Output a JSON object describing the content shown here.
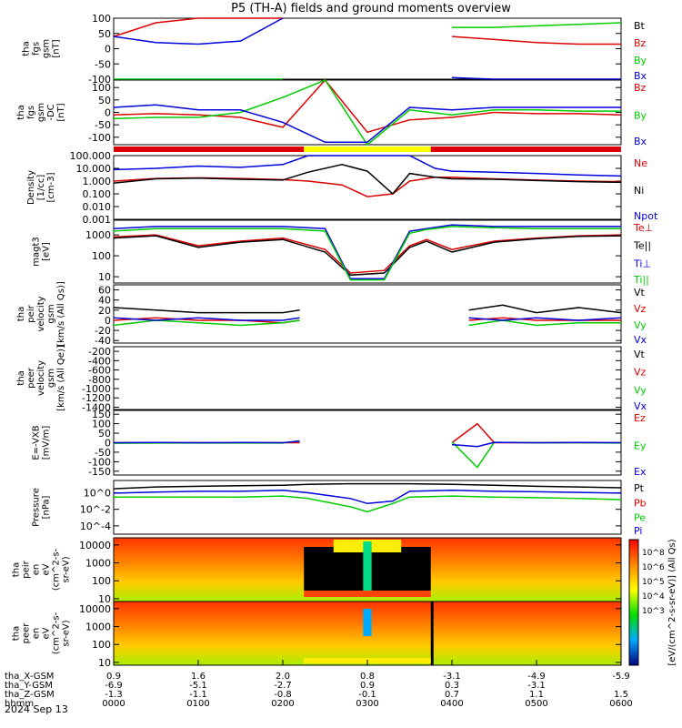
{
  "title": "P5 (TH-A) fields and ground moments overview",
  "colors": {
    "black": "#000000",
    "red": "#dd0000",
    "green": "#00cc00",
    "blue": "#0000dd",
    "yellow": "#ffff00"
  },
  "footer": {
    "rows": [
      {
        "label": "tha_X-GSM",
        "values": [
          "0.9",
          "1.6",
          "2.0",
          "0.8",
          "-3.1",
          "-4.9",
          "-5.9"
        ]
      },
      {
        "label": "tha_Y-GSM",
        "values": [
          "-6.9",
          "-5.1",
          "-2.7",
          "0.9",
          "0.3",
          "-3.1",
          ""
        ]
      },
      {
        "label": "tha_Z-GSM",
        "values": [
          "-1.3",
          "-1.1",
          "-0.8",
          "-0.1",
          "0.7",
          "1.1",
          "1.5"
        ]
      },
      {
        "label": "hhmm",
        "values": [
          "0000",
          "0100",
          "0200",
          "0300",
          "0400",
          "0500",
          "0600"
        ]
      }
    ],
    "date": "2024 Sep 13"
  },
  "chart_data": [
    {
      "type": "line",
      "id": "fgs",
      "ylabel": [
        "tha",
        "fgs",
        "gsm",
        "[nT]"
      ],
      "yticks": [
        "100",
        "50",
        "0",
        "-50",
        "-100"
      ],
      "ylim": [
        -100,
        100
      ],
      "legend": [
        {
          "name": "Bt",
          "color": "#000000"
        },
        {
          "name": "Bz",
          "color": "#dd0000"
        },
        {
          "name": "By",
          "color": "#00cc00"
        },
        {
          "name": "Bx",
          "color": "#0000dd"
        }
      ],
      "x": [
        0.0,
        0.5,
        1.0,
        1.5,
        2.0,
        2.3,
        3.3,
        3.7,
        4.0,
        4.5,
        5.0,
        5.5,
        6.0
      ],
      "series": [
        {
          "name": "Bz",
          "values": [
            40,
            85,
            100,
            100,
            100,
            null,
            null,
            null,
            40,
            30,
            20,
            15,
            15
          ]
        },
        {
          "name": "By",
          "values": [
            -100,
            -100,
            -100,
            -100,
            -100,
            null,
            null,
            null,
            70,
            70,
            75,
            80,
            85
          ]
        },
        {
          "name": "Bx",
          "values": [
            40,
            20,
            15,
            25,
            100,
            null,
            null,
            null,
            -95,
            -100,
            -100,
            -100,
            -100
          ]
        }
      ]
    },
    {
      "type": "line",
      "id": "fgs-dc",
      "ylabel": [
        "tha",
        "fgs",
        "gsm",
        "-DC",
        "[nT]"
      ],
      "yticks": [
        "100",
        "50",
        "0",
        "-50",
        "-100"
      ],
      "ylim": [
        -130,
        130
      ],
      "legend": [
        {
          "name": "Bz",
          "color": "#dd0000"
        },
        {
          "name": "By",
          "color": "#00cc00"
        },
        {
          "name": "Bx",
          "color": "#0000dd"
        }
      ],
      "x": [
        0.0,
        0.5,
        1.0,
        1.5,
        2.0,
        2.5,
        3.0,
        3.5,
        4.0,
        4.5,
        5.0,
        5.5,
        6.0
      ],
      "series": [
        {
          "name": "Bz",
          "values": [
            -10,
            -5,
            -10,
            -20,
            -60,
            130,
            -80,
            -30,
            -20,
            0,
            -5,
            -5,
            -10
          ]
        },
        {
          "name": "By",
          "values": [
            -25,
            -20,
            -20,
            0,
            60,
            130,
            -130,
            10,
            -10,
            10,
            10,
            5,
            5
          ]
        },
        {
          "name": "Bx",
          "values": [
            20,
            30,
            10,
            10,
            -40,
            -120,
            -120,
            20,
            10,
            20,
            20,
            20,
            20
          ]
        }
      ]
    },
    {
      "type": "bar",
      "id": "region-bar",
      "segments": [
        {
          "from": 0.0,
          "to": 2.25,
          "color": "#dd0000"
        },
        {
          "from": 2.25,
          "to": 3.75,
          "color": "#ffff00"
        },
        {
          "from": 3.75,
          "to": 6.0,
          "color": "#dd0000"
        }
      ]
    },
    {
      "type": "line",
      "id": "density",
      "log": true,
      "ylabel": [
        "Density",
        "[1/cc]",
        "[cm-3]"
      ],
      "yticks": [
        "100.000",
        "10.000",
        "1.000",
        "0.100",
        "0.010",
        "0.001"
      ],
      "ylim": [
        0.001,
        100
      ],
      "legend": [
        {
          "name": "Ne",
          "color": "#dd0000"
        },
        {
          "name": "Ni",
          "color": "#000000"
        },
        {
          "name": "Npot",
          "color": "#0000dd"
        }
      ],
      "x": [
        0.0,
        0.5,
        1.0,
        1.5,
        2.0,
        2.3,
        2.7,
        3.0,
        3.3,
        3.5,
        3.8,
        4.0,
        4.5,
        5.0,
        5.5,
        6.0
      ],
      "series": [
        {
          "name": "Ne",
          "values": [
            1.0,
            1.6,
            1.8,
            1.6,
            1.3,
            1.0,
            0.5,
            0.06,
            0.1,
            1.0,
            2.0,
            2.0,
            1.5,
            1.2,
            1.0,
            0.9
          ]
        },
        {
          "name": "Ni",
          "values": [
            0.7,
            1.5,
            1.7,
            1.4,
            1.2,
            5.0,
            20.0,
            6.0,
            0.1,
            4.0,
            2.0,
            1.5,
            1.4,
            1.1,
            0.9,
            0.8
          ]
        },
        {
          "name": "Npot",
          "values": [
            8.0,
            10.0,
            15.0,
            12.0,
            20.0,
            100,
            100,
            100,
            100,
            100,
            10.0,
            6.0,
            5.0,
            4.0,
            3.0,
            2.5
          ]
        }
      ]
    },
    {
      "type": "line",
      "id": "temperature",
      "log": true,
      "ylabel": [
        "magt3",
        "[eV]"
      ],
      "yticks": [
        "1000",
        "100",
        "10"
      ],
      "ylim": [
        5,
        5000
      ],
      "legend": [
        {
          "name": "Te⊥",
          "color": "#dd0000"
        },
        {
          "name": "Te||",
          "color": "#000000"
        },
        {
          "name": "Ti⊥",
          "color": "#0000dd"
        },
        {
          "name": "Ti||",
          "color": "#00cc00"
        }
      ],
      "x": [
        0.0,
        0.5,
        1.0,
        1.5,
        2.0,
        2.5,
        2.8,
        3.2,
        3.5,
        3.7,
        4.0,
        4.5,
        5.0,
        5.5,
        6.0
      ],
      "series": [
        {
          "name": "Te⊥",
          "values": [
            800,
            1000,
            300,
            500,
            700,
            200,
            15,
            20,
            300,
            600,
            200,
            500,
            700,
            900,
            1000
          ]
        },
        {
          "name": "Te||",
          "values": [
            700,
            900,
            250,
            450,
            600,
            150,
            12,
            15,
            250,
            500,
            150,
            450,
            650,
            850,
            900
          ]
        },
        {
          "name": "Ti⊥",
          "values": [
            2000,
            2500,
            2500,
            2500,
            2500,
            2000,
            8,
            8,
            1500,
            2000,
            3000,
            2500,
            2500,
            2500,
            2500
          ]
        },
        {
          "name": "Ti||",
          "values": [
            1500,
            2000,
            2000,
            2000,
            2000,
            1500,
            7,
            7,
            1200,
            1800,
            2500,
            2200,
            2000,
            2000,
            2000
          ]
        }
      ]
    },
    {
      "type": "line",
      "id": "peir-velocity",
      "ylabel": [
        "tha",
        "peir",
        "velocity",
        "gsm",
        "[km/s (All Qs)]"
      ],
      "yticks": [
        "60",
        "40",
        "20",
        "0",
        "-20",
        "-40"
      ],
      "ylim": [
        -45,
        70
      ],
      "legend": [
        {
          "name": "Vt",
          "color": "#000000"
        },
        {
          "name": "Vz",
          "color": "#dd0000"
        },
        {
          "name": "Vy",
          "color": "#00cc00"
        },
        {
          "name": "Vx",
          "color": "#0000dd"
        }
      ],
      "x": [
        0.0,
        0.5,
        1.0,
        1.5,
        2.0,
        2.2,
        3.8,
        4.2,
        4.6,
        5.0,
        5.5,
        6.0
      ],
      "series": [
        {
          "name": "Vt",
          "values": [
            25,
            20,
            15,
            15,
            15,
            20,
            null,
            20,
            30,
            15,
            25,
            15
          ]
        },
        {
          "name": "Vz",
          "values": [
            0,
            5,
            0,
            0,
            -5,
            0,
            null,
            0,
            5,
            0,
            0,
            0
          ]
        },
        {
          "name": "Vy",
          "values": [
            -10,
            0,
            -5,
            -10,
            -5,
            0,
            null,
            -10,
            0,
            -10,
            -5,
            -5
          ]
        },
        {
          "name": "Vx",
          "values": [
            5,
            0,
            5,
            0,
            0,
            5,
            null,
            5,
            0,
            5,
            0,
            5
          ]
        }
      ]
    },
    {
      "type": "line",
      "id": "peer-velocity",
      "ylabel": [
        "tha",
        "peer",
        "velocity",
        "gsm",
        "[km/s (All Qe)]"
      ],
      "yticks": [
        "-200",
        "-400",
        "-600",
        "-800",
        "-1000",
        "-1200",
        "-1400"
      ],
      "ylim": [
        -1450,
        -100
      ],
      "legend": [
        {
          "name": "Vt",
          "color": "#000000"
        },
        {
          "name": "Vz",
          "color": "#dd0000"
        },
        {
          "name": "Vy",
          "color": "#00cc00"
        },
        {
          "name": "Vx",
          "color": "#0000dd"
        }
      ],
      "x": [],
      "series": []
    },
    {
      "type": "line",
      "id": "efield",
      "ylabel": [
        "E=-VXB",
        "[mV/m]"
      ],
      "yticks": [
        "150",
        "100",
        "50",
        "0",
        "-50",
        "-100",
        "-150"
      ],
      "ylim": [
        -170,
        170
      ],
      "legend": [
        {
          "name": "Ez",
          "color": "#dd0000"
        },
        {
          "name": "Ey",
          "color": "#00cc00"
        },
        {
          "name": "Ex",
          "color": "#0000dd"
        }
      ],
      "x": [
        0.0,
        0.5,
        1.0,
        1.5,
        2.0,
        2.2,
        3.8,
        4.0,
        4.3,
        4.5,
        5.0,
        5.5,
        6.0
      ],
      "series": [
        {
          "name": "Ez",
          "values": [
            0,
            0,
            0,
            0,
            0,
            0,
            null,
            0,
            100,
            0,
            0,
            0,
            0
          ]
        },
        {
          "name": "Ey",
          "values": [
            -3,
            -2,
            -2,
            -2,
            -2,
            10,
            null,
            5,
            -130,
            2,
            0,
            0,
            -2
          ]
        },
        {
          "name": "Ex",
          "values": [
            0,
            1,
            0,
            1,
            0,
            8,
            null,
            -10,
            -20,
            2,
            0,
            1,
            0
          ]
        }
      ]
    },
    {
      "type": "line",
      "id": "pressure",
      "log": true,
      "ylabel": [
        "Pressure",
        "[nPa]"
      ],
      "yticks": [
        "10^0",
        "10^-2",
        "10^-4"
      ],
      "ylim": [
        1e-05,
        30
      ],
      "legend": [
        {
          "name": "Pt",
          "color": "#000000"
        },
        {
          "name": "Pb",
          "color": "#dd0000"
        },
        {
          "name": "Pe",
          "color": "#00cc00"
        },
        {
          "name": "Pi",
          "color": "#0000dd"
        }
      ],
      "x": [
        0.0,
        0.5,
        1.0,
        1.5,
        2.0,
        2.3,
        2.8,
        3.0,
        3.3,
        3.5,
        4.0,
        4.5,
        5.0,
        5.5,
        6.0
      ],
      "series": [
        {
          "name": "Pt",
          "values": [
            3,
            5,
            6,
            7,
            8,
            10,
            12,
            12,
            12,
            12,
            10,
            8,
            6,
            5,
            4
          ]
        },
        {
          "name": "Pe",
          "values": [
            0.3,
            0.3,
            0.3,
            0.3,
            0.4,
            0.2,
            0.02,
            0.005,
            0.05,
            0.3,
            0.4,
            0.3,
            0.25,
            0.2,
            0.15
          ]
        },
        {
          "name": "Pi",
          "values": [
            0.9,
            1.2,
            1.5,
            1.5,
            2.0,
            1.0,
            0.2,
            0.05,
            0.1,
            1.5,
            2.0,
            1.5,
            1.3,
            1.1,
            0.9
          ]
        }
      ]
    },
    {
      "type": "heatmap",
      "id": "peir-eflux",
      "log": true,
      "ylabel": [
        "tha",
        "peir",
        "en",
        "eV",
        "(cm^2-s-",
        "sr-eV)"
      ],
      "yticks": [
        "10000",
        "1000",
        "100",
        "10"
      ],
      "ylim": [
        7,
        25000
      ],
      "x": [
        0.0,
        1.0,
        2.0,
        2.25,
        2.6,
        3.0,
        3.4,
        3.75,
        4.0,
        5.0,
        6.0
      ]
    },
    {
      "type": "heatmap",
      "id": "peer-eflux",
      "log": true,
      "ylabel": [
        "tha",
        "peer",
        "en",
        "eV",
        "(cm^2-s-",
        "sr-eV)"
      ],
      "yticks": [
        "10000",
        "1000",
        "100",
        "10"
      ],
      "ylim": [
        7,
        25000
      ],
      "x": [
        0.0,
        1.0,
        2.0,
        2.25,
        2.6,
        3.0,
        3.4,
        3.75,
        4.0,
        5.0,
        6.0
      ]
    }
  ],
  "colorbar": {
    "label": "[eV/(cm^2-s-sr-eV)] (All Qs)",
    "ticks": [
      "10^8",
      "10^6",
      "10^5",
      "10^4",
      "10^3"
    ]
  }
}
